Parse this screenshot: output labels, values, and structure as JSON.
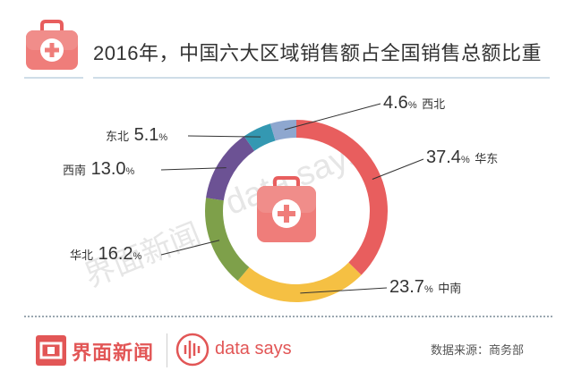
{
  "header": {
    "title": "2016年，中国六大区域销售额占全国销售总额比重",
    "icon": "first-aid-kit-icon"
  },
  "chart_data": {
    "type": "pie",
    "donut": true,
    "title": "2016年，中国六大区域销售额占全国销售总额比重",
    "categories": [
      "华东",
      "中南",
      "华北",
      "西南",
      "东北",
      "西北"
    ],
    "values": [
      37.4,
      23.7,
      16.2,
      13.0,
      5.1,
      4.6
    ],
    "unit": "%",
    "colors": [
      "#e85e5e",
      "#f5c043",
      "#7ea04a",
      "#6c5294",
      "#3498b2",
      "#8ea7cf"
    ],
    "center_icon": "first-aid-kit-icon"
  },
  "watermarks": {
    "text1": "data says",
    "text2": "界面新闻"
  },
  "footer": {
    "brand_name": "界面新闻",
    "brand_icon": "jiemian-logo-icon",
    "datasays_icon": "waveform-icon",
    "datasays_text": "data says",
    "source": "数据来源：商务部",
    "accent_color": "#e25656"
  }
}
